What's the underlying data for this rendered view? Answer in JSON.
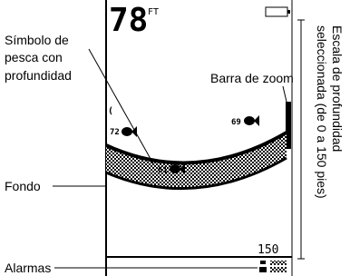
{
  "screen": {
    "depth": "78",
    "unit": "FT",
    "scale_max": "150",
    "fish": [
      {
        "depth": "72"
      },
      {
        "depth": "61"
      },
      {
        "depth": "69"
      }
    ]
  },
  "callouts": {
    "fish_symbol": [
      "Símbolo de",
      "pesca con",
      "profundidad"
    ],
    "zoom_bar": "Barra de zoom",
    "bottom": "Fondo",
    "alarms": "Alarmas",
    "depth_scale": [
      "Escala de profundidad",
      "seleccionada (de 0 a 150 pies)"
    ]
  }
}
